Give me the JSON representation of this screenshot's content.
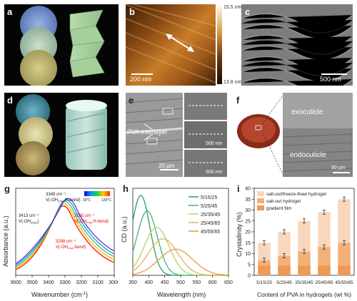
{
  "panel_labels": [
    "a",
    "b",
    "c",
    "d",
    "e",
    "f",
    "g",
    "h",
    "i"
  ],
  "panel_b": {
    "colorbar_max": "15.5 nm",
    "colorbar_min": "13.8 nm",
    "scalebar": "200 nm"
  },
  "panel_c": {
    "scalebar": "500 nm"
  },
  "panel_e": {
    "annotation": "PVA interlayer",
    "scalebar_main": "20 µm",
    "scalebar_inset1": "500 nm",
    "scalebar_inset2": "500 nm"
  },
  "panel_f": {
    "label_top": "exocuticle",
    "label_bottom": "endocuticle",
    "scalebar": "50 µm"
  },
  "panel_g": {
    "xlabel": "Wavenumber (cm",
    "xlabel_sup": "-1",
    "xlabel_end": ")",
    "ylabel": "Absorbance (a.u.)",
    "xticks": [
      "3600",
      "3500",
      "3400",
      "3300",
      "3200",
      "3100",
      "3000"
    ],
    "colorbar_left": "30°C",
    "colorbar_right": "120°C",
    "ann1_line1": "3348 cm⁻¹",
    "ann1_line2": "V(-OH",
    "ann1_sub": "CNF",
    "ann1_end": ",H-bond)",
    "ann2_line1": "3413 cm⁻¹",
    "ann2_line2": "V(-OH",
    "ann2_sub": "(free)",
    "ann2_end": ")",
    "ann3_line1": "3285 cm⁻¹",
    "ann3_line2": "V(-OH",
    "ann3_sub": "PVA",
    "ann3_end": ",H-bond)",
    "ann4_line1": "3298 cm⁻¹",
    "ann4_line2": "V(-OH",
    "ann4_sub": "PVA",
    "ann4_end": "-bond)"
  },
  "panel_i": {
    "xlabel": "Content of PVA in hydrogels (wt %)",
    "ylabel": "Crystallinity (%)"
  },
  "chart_data": [
    {
      "type": "line",
      "panel": "h",
      "xlabel": "Wavelength (nm)",
      "ylabel": "CD (a.u.)",
      "xlim": [
        350,
        650
      ],
      "xticks": [
        350,
        400,
        450,
        500,
        550,
        600,
        650
      ],
      "series": [
        {
          "name": "5/15/25",
          "color": "#2e9e5b",
          "peak_x": 375,
          "peak_y": 0.92,
          "width": 40
        },
        {
          "name": "5/25/45",
          "color": "#45b07a",
          "peak_x": 395,
          "peak_y": 0.74,
          "width": 45
        },
        {
          "name": "25/35/45",
          "color": "#b7cf6d",
          "peak_x": 425,
          "peak_y": 0.55,
          "width": 55
        },
        {
          "name": "25/45/65",
          "color": "#e3b15c",
          "peak_x": 445,
          "peak_y": 0.42,
          "width": 65
        },
        {
          "name": "45/55/65",
          "color": "#e59a43",
          "peak_x": 485,
          "peak_y": 0.3,
          "width": 75
        }
      ]
    },
    {
      "type": "bar",
      "panel": "i",
      "categories": [
        "5/15/25",
        "5/25/45",
        "25/35/45",
        "25/45/65",
        "45/55/65"
      ],
      "ylim": [
        0,
        40
      ],
      "yticks": [
        0,
        5,
        10,
        15,
        20,
        25,
        30,
        35,
        40
      ],
      "series": [
        {
          "name": "salt-out/freeze-thaw hydrogel",
          "color": "#f8d7bd",
          "values": [
            15,
            20,
            25,
            29,
            35
          ]
        },
        {
          "name": "salt-out hydrogel",
          "color": "#f2b17a",
          "values": [
            7,
            9,
            11,
            13,
            15
          ]
        },
        {
          "name": "gradient film",
          "color": "#ee9a55",
          "values": [
            4.5,
            4.5,
            4.5,
            4.5,
            4.5
          ]
        }
      ]
    }
  ]
}
